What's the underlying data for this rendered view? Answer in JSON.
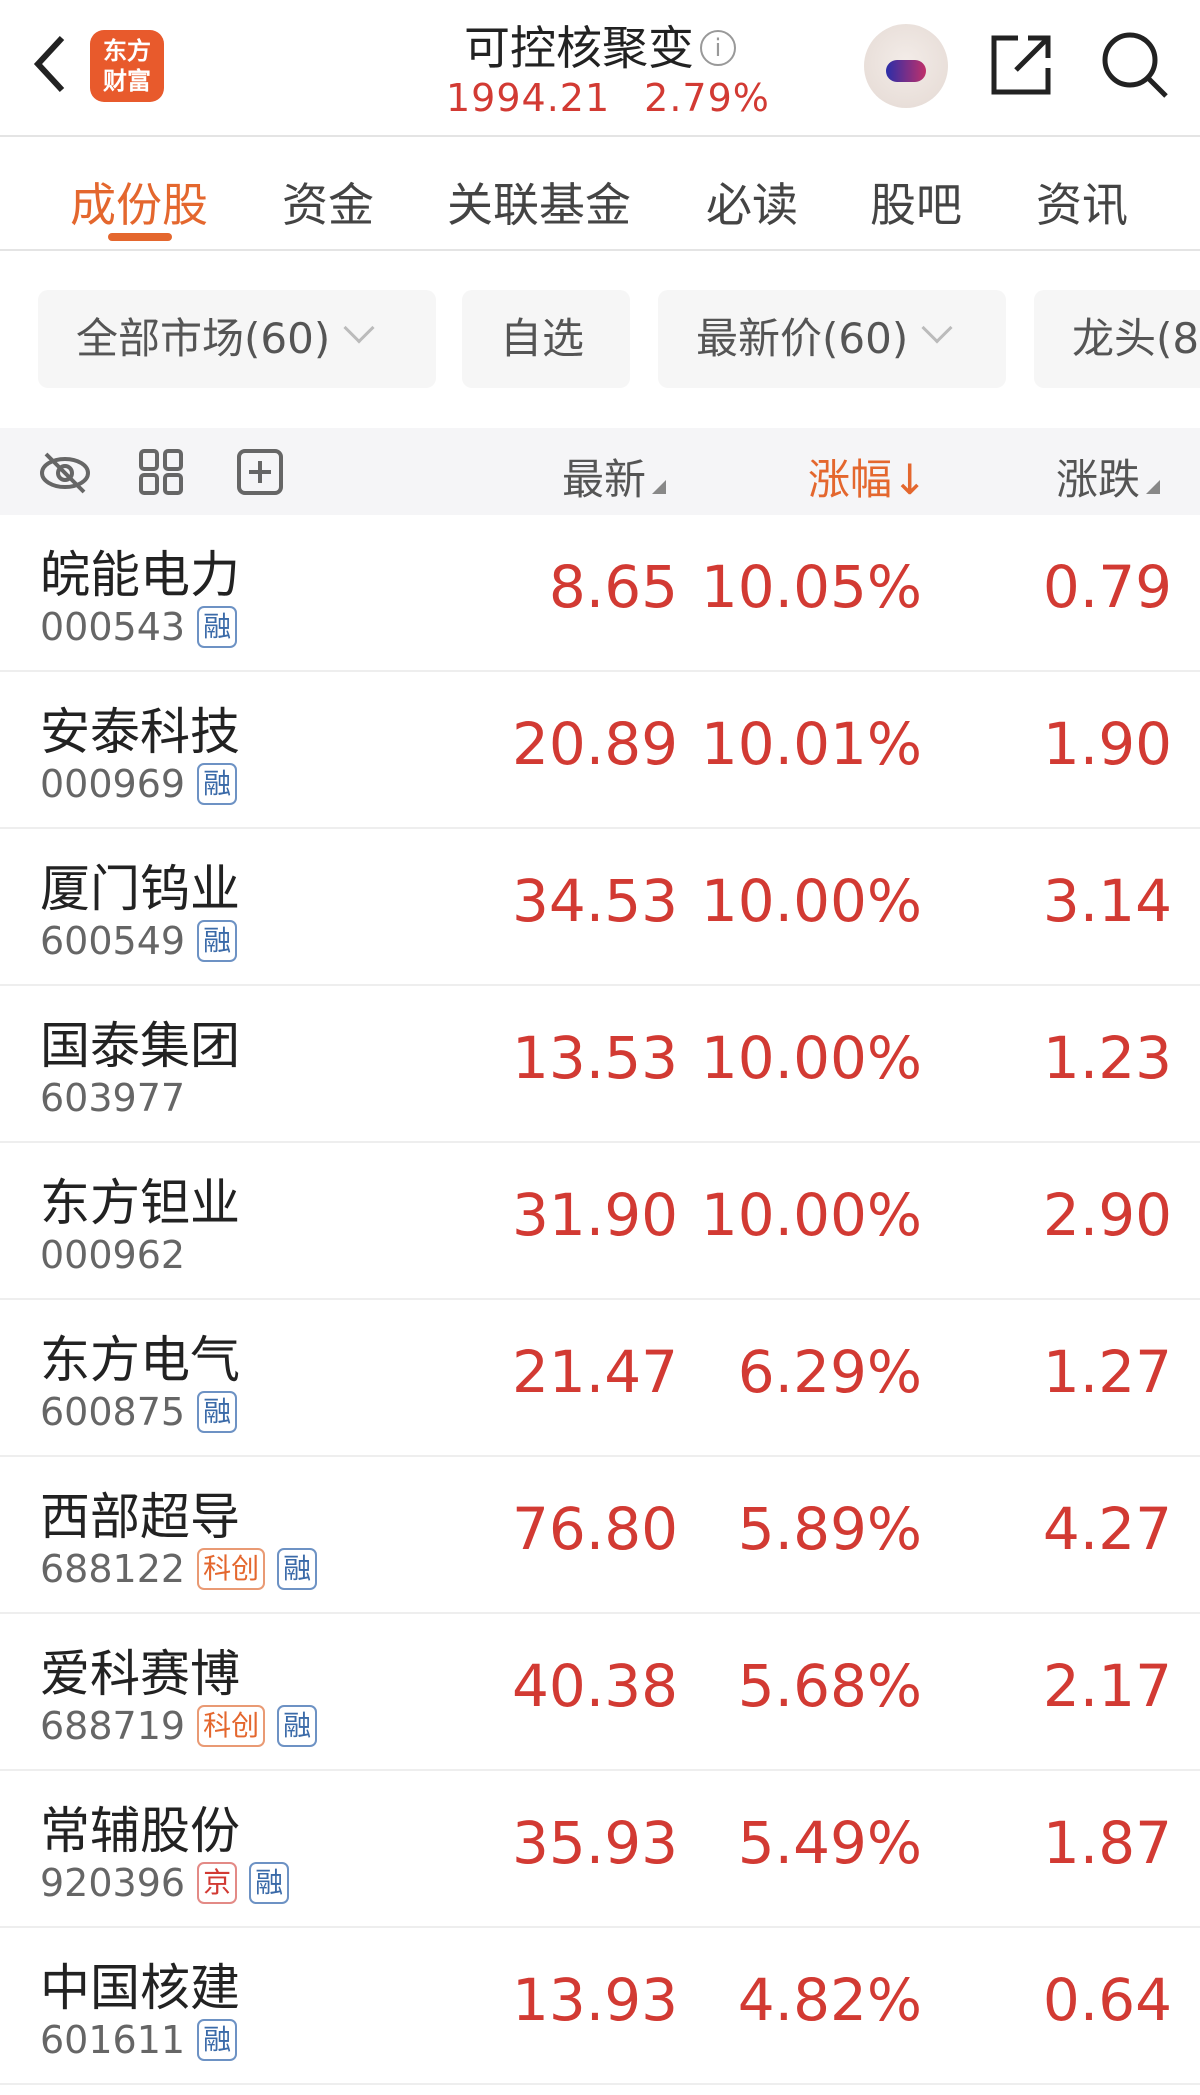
{
  "header": {
    "title": "可控核聚变",
    "index_value": "1994.21",
    "index_change": "2.79%",
    "logo_text": [
      "东方",
      "财富"
    ]
  },
  "tabs": [
    {
      "label": "成份股"
    },
    {
      "label": "资金"
    },
    {
      "label": "关联基金"
    },
    {
      "label": "必读"
    },
    {
      "label": "股吧"
    },
    {
      "label": "资讯"
    }
  ],
  "filters": [
    {
      "label": "全部市场(60)"
    },
    {
      "label": "自选"
    },
    {
      "label": "最新价(60)"
    },
    {
      "label": "龙头(8"
    }
  ],
  "columns": {
    "latest": "最新",
    "change_pct": "涨幅↓",
    "change": "涨跌"
  },
  "colors": {
    "accent": "#e4672e",
    "up": "#d23a33"
  },
  "stocks": [
    {
      "name": "皖能电力",
      "code": "000543",
      "tags": [
        "融"
      ],
      "price": "8.65",
      "pct": "10.05%",
      "chg": "0.79"
    },
    {
      "name": "安泰科技",
      "code": "000969",
      "tags": [
        "融"
      ],
      "price": "20.89",
      "pct": "10.01%",
      "chg": "1.90"
    },
    {
      "name": "厦门钨业",
      "code": "600549",
      "tags": [
        "融"
      ],
      "price": "34.53",
      "pct": "10.00%",
      "chg": "3.14"
    },
    {
      "name": "国泰集团",
      "code": "603977",
      "tags": [],
      "price": "13.53",
      "pct": "10.00%",
      "chg": "1.23"
    },
    {
      "name": "东方钽业",
      "code": "000962",
      "tags": [],
      "price": "31.90",
      "pct": "10.00%",
      "chg": "2.90"
    },
    {
      "name": "东方电气",
      "code": "600875",
      "tags": [
        "融"
      ],
      "price": "21.47",
      "pct": "6.29%",
      "chg": "1.27"
    },
    {
      "name": "西部超导",
      "code": "688122",
      "tags": [
        "科创",
        "融"
      ],
      "price": "76.80",
      "pct": "5.89%",
      "chg": "4.27"
    },
    {
      "name": "爱科赛博",
      "code": "688719",
      "tags": [
        "科创",
        "融"
      ],
      "price": "40.38",
      "pct": "5.68%",
      "chg": "2.17"
    },
    {
      "name": "常辅股份",
      "code": "920396",
      "tags": [
        "京",
        "融"
      ],
      "price": "35.93",
      "pct": "5.49%",
      "chg": "1.87"
    },
    {
      "name": "中国核建",
      "code": "601611",
      "tags": [
        "融"
      ],
      "price": "13.93",
      "pct": "4.82%",
      "chg": "0.64"
    }
  ]
}
